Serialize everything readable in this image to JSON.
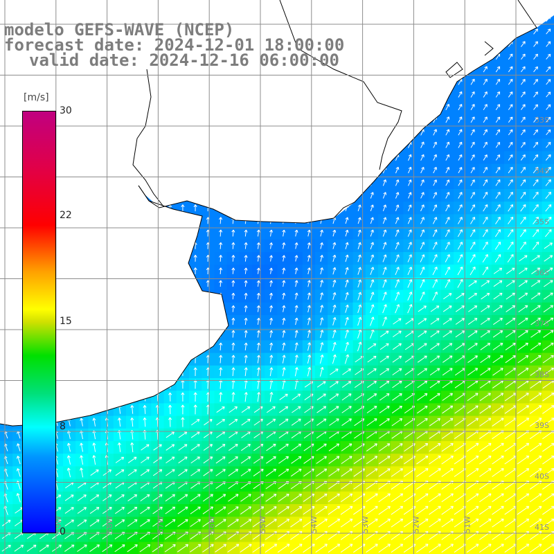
{
  "title": {
    "line1": "modelo GEFS-WAVE (NCEP)",
    "line2": "forecast date: 2024-12-01 18:00:00",
    "line3": "valid date: 2024-12-16 06:00:00"
  },
  "colorbar": {
    "unit": "[m/s]",
    "ticks": [
      "30",
      "22",
      "15",
      "8",
      "0"
    ],
    "min": 0,
    "max": 30
  },
  "lat_labels": [
    "33S",
    "34S",
    "35S",
    "36S",
    "37S",
    "38S",
    "39S",
    "40S",
    "41S"
  ],
  "lon_labels": [
    "59W",
    "58W",
    "57W",
    "56W",
    "55W",
    "54W",
    "53W",
    "52W",
    "51W"
  ],
  "colors": {
    "land": "#ffffff",
    "grid": "#8c8c8c",
    "coast": "#000000",
    "arrow": "#ffffff",
    "title": "#7d7d7d"
  }
}
